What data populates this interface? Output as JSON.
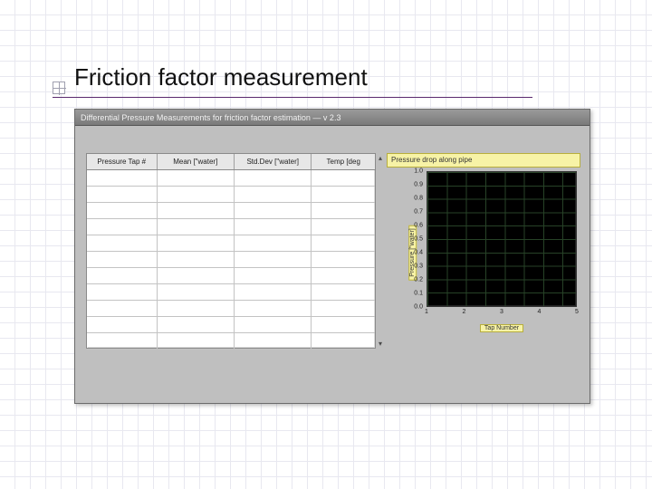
{
  "slide": {
    "title": "Friction factor measurement",
    "title_color": "#111111",
    "rule_color": "#5b2a6e"
  },
  "window": {
    "title": "Differential Pressure Measurements for friction factor estimation — v 2.3",
    "background": "#bfbfbf"
  },
  "table": {
    "columns": [
      "Pressure Tap #",
      "Mean [\"water]",
      "Std.Dev [\"water]",
      "Temp [deg"
    ],
    "row_count": 11
  },
  "chart": {
    "type": "line",
    "title": "Pressure drop along pipe",
    "ylabel": "Pressure [\"water]",
    "xlabel": "Tap Number",
    "background_color": "#000000",
    "grid_color": "#2c4a2c",
    "label_bg": "#f7f3a6",
    "label_border": "#b7ae3d",
    "ylim": [
      0.0,
      1.0
    ],
    "ytick_step": 0.1,
    "yticks": [
      "1.0",
      "0.9",
      "0.8",
      "0.7",
      "0.6",
      "0.5",
      "0.4",
      "0.3",
      "0.2",
      "0.1",
      "0.0"
    ],
    "xlim": [
      1,
      5
    ],
    "xticks": [
      "1",
      "2",
      "3",
      "4",
      "5"
    ],
    "tick_fontsize": 7,
    "title_fontsize": 8
  }
}
